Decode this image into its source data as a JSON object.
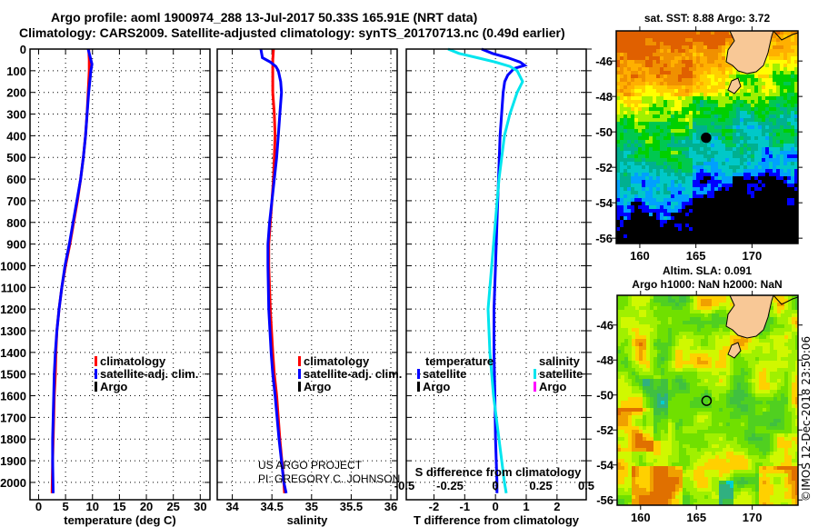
{
  "header": {
    "title_line1": "Argo profile: aoml 1900974_288 13-Jul-2017 50.33S 165.91E (NRT data)",
    "title_line2": "Climatology: CARS2009. Satellite-adjusted climatology: synTS_20170713.nc (0.49d earlier)"
  },
  "credits": {
    "project": "US ARGO PROJECT",
    "pi": "PI: GREGORY C. JOHNSON",
    "imos_stamp": "©IMOS 12-Dec-2018 23:50:06"
  },
  "colors": {
    "climatology": "#ff0000",
    "satellite": "#0000ff",
    "argo": "#000000",
    "sal_satellite": "#00e5ee",
    "sal_argo": "#ff00ff",
    "land": "#f8c896"
  },
  "chart_data": [
    {
      "type": "line",
      "id": "temperature",
      "xlabel": "temperature (deg C)",
      "ylabel": "",
      "xlim": [
        -1.6,
        31.8
      ],
      "ylim": [
        2080,
        0
      ],
      "xticks": [
        0,
        5,
        10,
        15,
        20,
        25,
        30
      ],
      "yticks": [
        0,
        100,
        200,
        300,
        400,
        500,
        600,
        700,
        800,
        900,
        1000,
        1100,
        1200,
        1300,
        1400,
        1500,
        1600,
        1700,
        1800,
        1900,
        2000
      ],
      "grid": true,
      "legend": {
        "placement": "lower-middle",
        "entries": [
          "climatology",
          "satellite-adj. clim.",
          "Argo"
        ]
      },
      "series": [
        {
          "name": "climatology",
          "color": "#ff0000",
          "depth": [
            0,
            50,
            100,
            200,
            300,
            400,
            500,
            600,
            700,
            800,
            900,
            1000,
            1100,
            1200,
            1300,
            1400,
            1500,
            1600,
            1700,
            1800,
            1900,
            2050
          ],
          "values": [
            9.3,
            9.4,
            9.4,
            9.2,
            9.0,
            8.7,
            8.3,
            7.8,
            7.2,
            6.5,
            5.8,
            5.0,
            4.3,
            3.8,
            3.4,
            3.2,
            3.1,
            2.9,
            2.8,
            2.7,
            2.6,
            2.5
          ]
        },
        {
          "name": "satellite-adj. clim.",
          "color": "#0000ff",
          "depth": [
            0,
            40,
            70,
            100,
            150,
            200,
            300,
            400,
            500,
            600,
            700,
            800,
            900,
            1000,
            1100,
            1200,
            1300,
            1400,
            1500,
            1600,
            1700,
            1800,
            1900,
            2050
          ],
          "values": [
            9.2,
            9.6,
            9.9,
            9.7,
            9.5,
            9.3,
            9.0,
            8.7,
            8.3,
            7.8,
            7.1,
            6.4,
            5.7,
            4.9,
            4.3,
            3.8,
            3.4,
            3.1,
            2.9,
            2.8,
            2.7,
            2.6,
            2.6,
            2.7
          ]
        }
      ]
    },
    {
      "type": "line",
      "id": "salinity",
      "xlabel": "salinity",
      "ylabel": "",
      "xlim": [
        33.81,
        36.08
      ],
      "ylim": [
        2080,
        0
      ],
      "xticks": [
        34,
        34.5,
        35,
        35.5,
        36
      ],
      "xticklabels": [
        "34",
        "34.5",
        "35",
        "35.5",
        "36"
      ],
      "grid": true,
      "legend": {
        "placement": "lower-middle",
        "entries": [
          "climatology",
          "satellite-adj. clim.",
          "Argo"
        ]
      },
      "series": [
        {
          "name": "climatology",
          "color": "#ff0000",
          "depth": [
            0,
            50,
            100,
            200,
            300,
            400,
            500,
            600,
            700,
            800,
            900,
            1000,
            1200,
            1400,
            1500,
            1600,
            1800,
            2000,
            2050
          ],
          "values": [
            34.52,
            34.51,
            34.51,
            34.51,
            34.53,
            34.54,
            34.53,
            34.52,
            34.5,
            34.48,
            34.46,
            34.46,
            34.48,
            34.51,
            34.53,
            34.56,
            34.6,
            34.65,
            34.66
          ]
        },
        {
          "name": "satellite-adj. clim.",
          "color": "#0000ff",
          "depth": [
            0,
            40,
            60,
            80,
            100,
            150,
            200,
            300,
            400,
            500,
            600,
            700,
            800,
            900,
            1000,
            1200,
            1400,
            1500,
            1600,
            1800,
            2000,
            2050
          ],
          "values": [
            34.36,
            34.38,
            34.48,
            34.55,
            34.58,
            34.61,
            34.62,
            34.6,
            34.58,
            34.56,
            34.53,
            34.5,
            34.47,
            34.45,
            34.45,
            34.46,
            34.49,
            34.51,
            34.54,
            34.59,
            34.65,
            34.68
          ]
        }
      ]
    },
    {
      "type": "line",
      "id": "difference",
      "xlabel": "T difference from climatology",
      "x2label": "S difference from climatology",
      "xlim": [
        -2.9,
        2.95
      ],
      "x2lim": [
        -0.49,
        0.5
      ],
      "ylim": [
        2080,
        0
      ],
      "xticks": [
        -2,
        -1,
        0,
        1,
        2
      ],
      "x2ticks": [
        -0.5,
        -0.25,
        0,
        0.25,
        0.5
      ],
      "x2ticklabels": [
        "-0.5",
        "-0.25",
        "0",
        "0.25",
        "0.5"
      ],
      "grid": true,
      "legend": {
        "placement": "lower",
        "temperature_title": "temperature",
        "salinity_title": "salinity",
        "entries": [
          "satellite",
          "Argo"
        ]
      },
      "series": [
        {
          "name": "temperature satellite",
          "color": "#0000ff",
          "axis": "T",
          "depth": [
            0,
            20,
            40,
            60,
            75,
            90,
            120,
            150,
            200,
            300,
            400,
            600,
            800,
            1000,
            1200,
            1400,
            1600,
            1800,
            2000,
            2050
          ],
          "values": [
            -0.45,
            -0.1,
            0.4,
            0.8,
            0.95,
            0.6,
            0.4,
            0.3,
            0.25,
            0.2,
            0.15,
            0.1,
            0.05,
            0.0,
            -0.05,
            -0.05,
            -0.02,
            0.0,
            0.05,
            0.05
          ]
        },
        {
          "name": "salinity satellite",
          "color": "#00e5ee",
          "axis": "S",
          "depth": [
            0,
            20,
            40,
            60,
            80,
            100,
            150,
            200,
            300,
            400,
            600,
            800,
            1000,
            1200,
            1400,
            1600,
            1800,
            2000,
            2050
          ],
          "values": [
            -0.26,
            -0.2,
            -0.1,
            0.0,
            0.08,
            0.12,
            0.15,
            0.12,
            0.08,
            0.05,
            0.02,
            0.0,
            -0.02,
            -0.04,
            -0.03,
            -0.01,
            0.02,
            0.05,
            0.06
          ]
        }
      ]
    },
    {
      "type": "heatmap",
      "id": "sst-map",
      "title": "sat. SST: 8.88 Argo: 3.72",
      "xlim": [
        157.9,
        174.1
      ],
      "ylim": [
        -56.3,
        -44.3
      ],
      "xticks": [
        160,
        165,
        170
      ],
      "yticks": [
        -46,
        -48,
        -50,
        -52,
        -54,
        -56
      ],
      "float_position": [
        165.91,
        -50.33
      ]
    },
    {
      "type": "heatmap",
      "id": "sla-map",
      "title": "Altim. SLA: 0.091",
      "subtitle": "Argo h1000: NaN h2000: NaN",
      "xlim": [
        157.9,
        174.1
      ],
      "ylim": [
        -56.3,
        -44.3
      ],
      "xticks": [
        160,
        165,
        170
      ],
      "yticks": [
        -46,
        -48,
        -50,
        -52,
        -54,
        -56
      ],
      "float_position": [
        165.91,
        -50.33
      ]
    }
  ]
}
